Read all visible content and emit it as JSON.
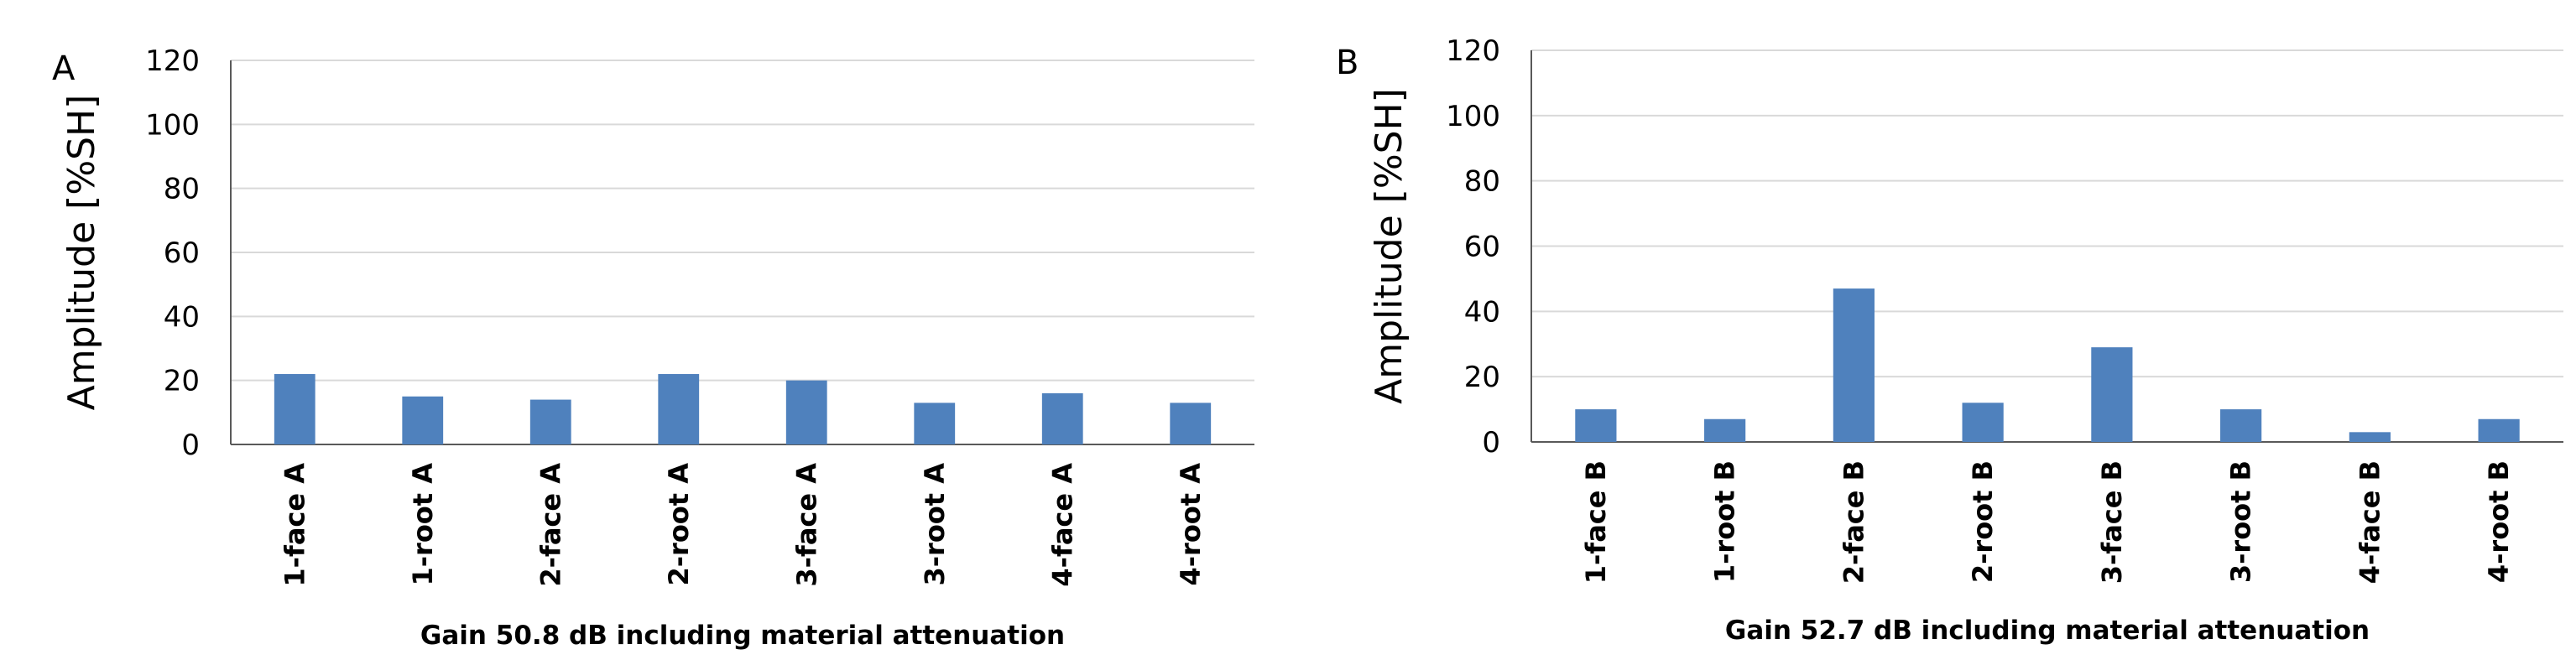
{
  "chart_data": [
    {
      "type": "bar",
      "panel_label": "A",
      "title": "",
      "xlabel": "Gain 50.8 dB including material attenuation",
      "ylabel": "Amplitude [%SH]",
      "categories": [
        "1-face A",
        "1-root A",
        "2-face A",
        "2-root A",
        "3-face A",
        "3-root A",
        "4-face A",
        "4-root A"
      ],
      "values": [
        22,
        15,
        14,
        22,
        20,
        13,
        16,
        13
      ],
      "ylim": [
        0,
        120
      ],
      "yticks": [
        0,
        20,
        40,
        60,
        80,
        100,
        120
      ],
      "grid": true,
      "color": "#4f81bd"
    },
    {
      "type": "bar",
      "panel_label": "B",
      "title": "",
      "xlabel": "Gain 52.7 dB including material attenuation",
      "ylabel": "Amplitude [%SH]",
      "categories": [
        "1-face B",
        "1-root B",
        "2-face B",
        "2-root B",
        "3-face B",
        "3-root B",
        "4-face B",
        "4-root B"
      ],
      "values": [
        10,
        7,
        47,
        12,
        29,
        10,
        3,
        7
      ],
      "ylim": [
        0,
        120
      ],
      "yticks": [
        0,
        20,
        40,
        60,
        80,
        100,
        120
      ],
      "grid": true,
      "color": "#4f81bd"
    }
  ]
}
